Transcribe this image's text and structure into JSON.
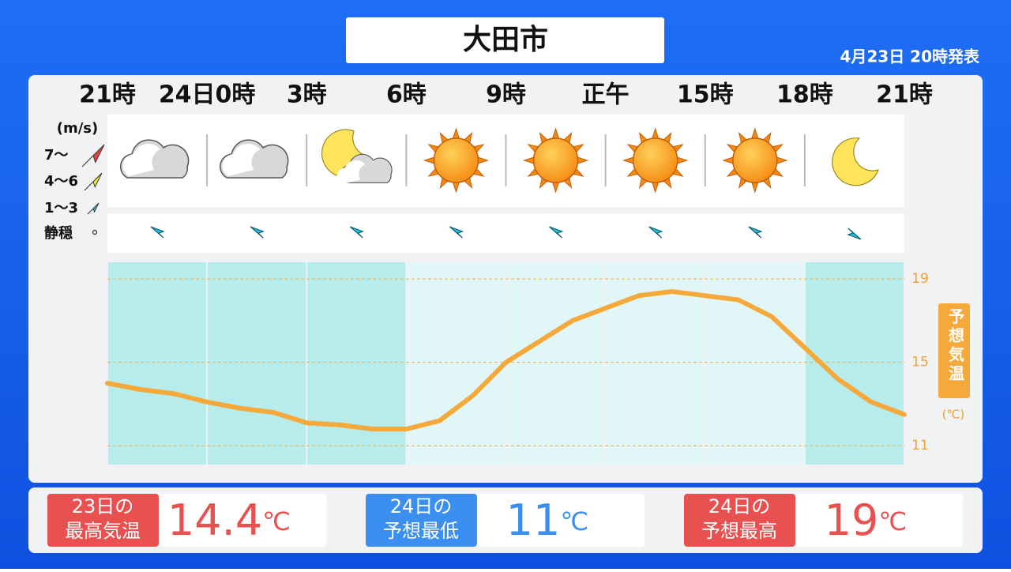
{
  "header": {
    "title": "大田市",
    "issued": "4月23日 20時発表"
  },
  "wind_legend": {
    "unit": "(m/s)",
    "levels": [
      "7〜",
      "4〜6",
      "1〜3",
      "静穏"
    ]
  },
  "chart_data": {
    "type": "line",
    "categories": [
      "21時",
      null,
      null,
      "24日0時",
      null,
      null,
      "3時",
      null,
      null,
      "6時",
      null,
      null,
      "9時",
      null,
      null,
      "正午",
      null,
      null,
      "15時",
      null,
      null,
      "18時",
      null,
      null,
      "21時"
    ],
    "values": [
      14.0,
      13.7,
      13.5,
      13.1,
      12.8,
      12.6,
      12.1,
      12.0,
      11.8,
      11.8,
      12.2,
      13.4,
      15.0,
      16.0,
      17.0,
      17.6,
      18.2,
      18.4,
      18.2,
      18.0,
      17.2,
      15.7,
      14.2,
      13.1,
      12.5
    ],
    "color": "#f6a93b",
    "ylim": [
      10.1,
      19.8
    ],
    "yticks": [
      11,
      15,
      19
    ],
    "grid": true,
    "y_label": "予想気温",
    "y_unit": "(℃)"
  },
  "cards": [
    {
      "label": [
        "23日の",
        "最高気温"
      ],
      "value": 14.4,
      "unit": "℃",
      "color": "#e8514f"
    },
    {
      "label": [
        "24日の",
        "予想最低"
      ],
      "value": 11,
      "unit": "℃",
      "color": "#3a8ff0"
    },
    {
      "label": [
        "24日の",
        "予想最高"
      ],
      "value": 19,
      "unit": "℃",
      "color": "#e8514f"
    }
  ]
}
